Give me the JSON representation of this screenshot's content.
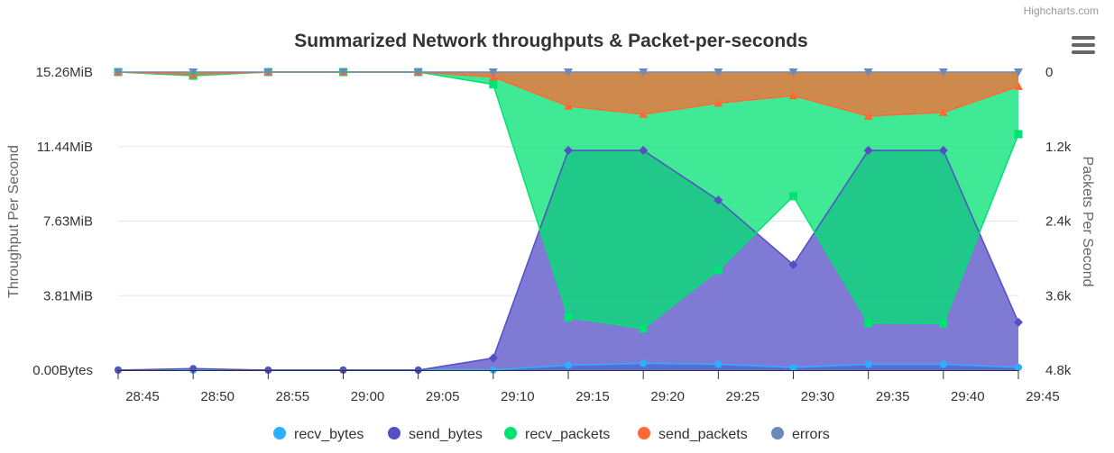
{
  "credits": "Highcharts.com",
  "chart_data": {
    "type": "area",
    "title": "Summarized Network throughputs & Packet-per-seconds",
    "x": [
      "28:45",
      "28:50",
      "28:55",
      "29:00",
      "29:05",
      "29:10",
      "29:15",
      "29:20",
      "29:25",
      "29:30",
      "29:35",
      "29:40",
      "29:45"
    ],
    "x_ticks": [
      "28:45",
      "28:50",
      "28:55",
      "29:00",
      "29:05",
      "29:10",
      "29:15",
      "29:20",
      "29:25",
      "29:30",
      "29:35",
      "29:40",
      "29:45"
    ],
    "y_left": {
      "label": "Throughput Per Second",
      "unit": "MiB",
      "ticks": [
        "0.00Bytes",
        "3.81MiB",
        "7.63MiB",
        "11.44MiB",
        "15.26MiB"
      ],
      "tick_values": [
        0,
        3.815,
        7.63,
        11.445,
        15.26
      ],
      "range": [
        0,
        15.26
      ]
    },
    "y_right": {
      "label": "Packets Per Second",
      "reversed": true,
      "ticks": [
        "0",
        "1.2k",
        "2.4k",
        "3.6k",
        "4.8k"
      ],
      "tick_values": [
        0,
        1200,
        2400,
        3600,
        4800
      ],
      "range": [
        0,
        4800
      ]
    },
    "legend": [
      "recv_bytes",
      "send_bytes",
      "recv_packets",
      "send_packets",
      "errors"
    ],
    "legend_position": "bottom-center",
    "series": [
      {
        "name": "recv_bytes",
        "axis": "left",
        "color": "#2caffe",
        "marker": "circle",
        "values": [
          0.02,
          0.0,
          0.01,
          0.01,
          0.01,
          0.01,
          0.25,
          0.35,
          0.3,
          0.14,
          0.3,
          0.3,
          0.14
        ]
      },
      {
        "name": "send_bytes",
        "axis": "left",
        "color": "#544fc5",
        "marker": "circle",
        "values": [
          0.0,
          0.08,
          0.0,
          0.0,
          0.0,
          0.62,
          11.25,
          11.25,
          8.7,
          5.4,
          11.25,
          11.25,
          2.45
        ]
      },
      {
        "name": "recv_packets",
        "axis": "right",
        "color": "#00e272",
        "marker": "square",
        "values": [
          0,
          60,
          0,
          0,
          0,
          200,
          3950,
          4130,
          3190,
          2000,
          4040,
          4050,
          1000
        ]
      },
      {
        "name": "send_packets",
        "axis": "right",
        "color": "#fe6a35",
        "marker": "triangle",
        "values": [
          0,
          40,
          0,
          0,
          0,
          80,
          550,
          680,
          500,
          380,
          710,
          650,
          230
        ]
      },
      {
        "name": "errors",
        "axis": "right",
        "color": "#6b8abc",
        "marker": "triangle-down",
        "values": [
          0,
          0,
          0,
          0,
          0,
          0,
          0,
          0,
          0,
          0,
          0,
          0,
          0
        ]
      }
    ]
  }
}
